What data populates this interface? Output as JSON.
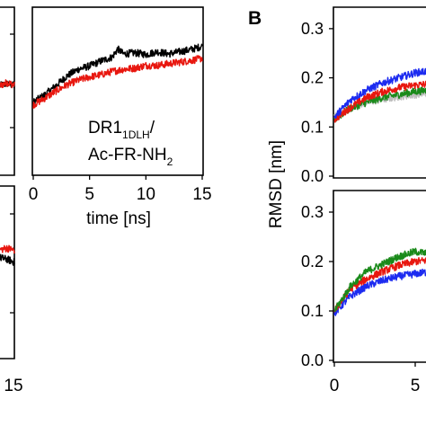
{
  "figure": {
    "panel_letter": "B"
  },
  "chart_data": [
    {
      "id": "left-top-fragment",
      "type": "line",
      "x_domain": [
        0,
        15
      ],
      "y_domain": [
        0,
        0.3
      ],
      "series": [
        {
          "color": "#000000",
          "x": [
            13,
            14,
            15
          ],
          "y": [
            0.16,
            0.164,
            0.16
          ]
        },
        {
          "color": "#e8170f",
          "x": [
            13,
            14,
            15
          ],
          "y": [
            0.16,
            0.166,
            0.161
          ]
        }
      ]
    },
    {
      "id": "dr1-ac-fr",
      "type": "line",
      "annotation_main": "DR1",
      "annotation_sub": "1DLH",
      "annotation_slash": "/",
      "annotation_line2_main": "Ac-FR-NH",
      "annotation_line2_sub": "2",
      "xlabel": "time [ns]",
      "x_ticks": [
        "0",
        "5",
        "10",
        "15"
      ],
      "x_domain": [
        0,
        15
      ],
      "y_domain": [
        0,
        0.3
      ],
      "series": [
        {
          "color": "#000000",
          "x": [
            0,
            1,
            2,
            3,
            4,
            5,
            6,
            7,
            7.5,
            8,
            9,
            10,
            11,
            12,
            13,
            14,
            15
          ],
          "y": [
            0.13,
            0.143,
            0.16,
            0.178,
            0.19,
            0.196,
            0.205,
            0.212,
            0.227,
            0.218,
            0.22,
            0.217,
            0.222,
            0.218,
            0.222,
            0.226,
            0.232
          ]
        },
        {
          "color": "#e8170f",
          "x": [
            0,
            1,
            2,
            3,
            4,
            5,
            6,
            7,
            8,
            9,
            10,
            11,
            12,
            13,
            14,
            15
          ],
          "y": [
            0.125,
            0.137,
            0.15,
            0.162,
            0.17,
            0.176,
            0.18,
            0.186,
            0.19,
            0.192,
            0.197,
            0.197,
            0.2,
            0.203,
            0.206,
            0.21
          ]
        }
      ]
    },
    {
      "id": "left-bottom-fragment",
      "type": "line",
      "x_ticks": [
        "15"
      ],
      "x_domain": [
        0,
        15
      ],
      "y_domain": [
        0,
        0.3
      ],
      "series": [
        {
          "color": "#000000",
          "x": [
            13,
            14,
            15
          ],
          "y": [
            0.176,
            0.173,
            0.168
          ]
        },
        {
          "color": "#e8170f",
          "x": [
            13,
            14,
            15
          ],
          "y": [
            0.19,
            0.193,
            0.189
          ]
        }
      ]
    },
    {
      "id": "b-top",
      "type": "line",
      "ylabel": "RMSD [nm]",
      "y_ticks": [
        "0.0",
        "0.1",
        "0.2",
        "0.3"
      ],
      "x_domain": [
        0,
        15
      ],
      "y_domain": [
        0,
        0.34
      ],
      "series": [
        {
          "color": "#1c2bf0",
          "x": [
            0,
            1,
            2,
            3,
            4,
            5,
            6,
            7,
            8
          ],
          "y": [
            0.12,
            0.155,
            0.175,
            0.19,
            0.2,
            0.21,
            0.215,
            0.22,
            0.225
          ]
        },
        {
          "color": "#e8170f",
          "x": [
            0,
            1,
            2,
            3,
            4,
            5,
            6,
            7,
            8
          ],
          "y": [
            0.115,
            0.14,
            0.16,
            0.172,
            0.18,
            0.185,
            0.188,
            0.192,
            0.196
          ]
        },
        {
          "color": "#1a8a1a",
          "x": [
            0,
            1,
            2,
            3,
            4,
            5,
            6,
            7,
            8
          ],
          "y": [
            0.115,
            0.138,
            0.15,
            0.16,
            0.166,
            0.172,
            0.176,
            0.18,
            0.185
          ]
        },
        {
          "color": "#bdbdbd",
          "x": [
            0,
            1,
            2,
            3,
            4,
            5,
            6,
            7,
            8
          ],
          "y": [
            0.12,
            0.14,
            0.15,
            0.156,
            0.162,
            0.166,
            0.17,
            0.172,
            0.175
          ]
        }
      ]
    },
    {
      "id": "b-bottom",
      "type": "line",
      "y_ticks": [
        "0.0",
        "0.1",
        "0.2",
        "0.3"
      ],
      "x_ticks": [
        "0",
        "5"
      ],
      "x_domain": [
        0,
        15
      ],
      "y_domain": [
        0,
        0.34
      ],
      "series": [
        {
          "color": "#1a8a1a",
          "x": [
            0,
            1,
            2,
            3,
            4,
            5,
            6,
            7,
            8
          ],
          "y": [
            0.1,
            0.15,
            0.18,
            0.195,
            0.21,
            0.22,
            0.215,
            0.205,
            0.2
          ]
        },
        {
          "color": "#e8170f",
          "x": [
            0,
            1,
            2,
            3,
            4,
            5,
            6,
            7,
            8
          ],
          "y": [
            0.1,
            0.145,
            0.165,
            0.18,
            0.192,
            0.2,
            0.203,
            0.2,
            0.2
          ]
        },
        {
          "color": "#1c2bf0",
          "x": [
            0,
            1,
            2,
            3,
            4,
            5,
            6,
            7,
            8
          ],
          "y": [
            0.095,
            0.13,
            0.15,
            0.162,
            0.17,
            0.175,
            0.18,
            0.185,
            0.19
          ]
        }
      ]
    }
  ]
}
